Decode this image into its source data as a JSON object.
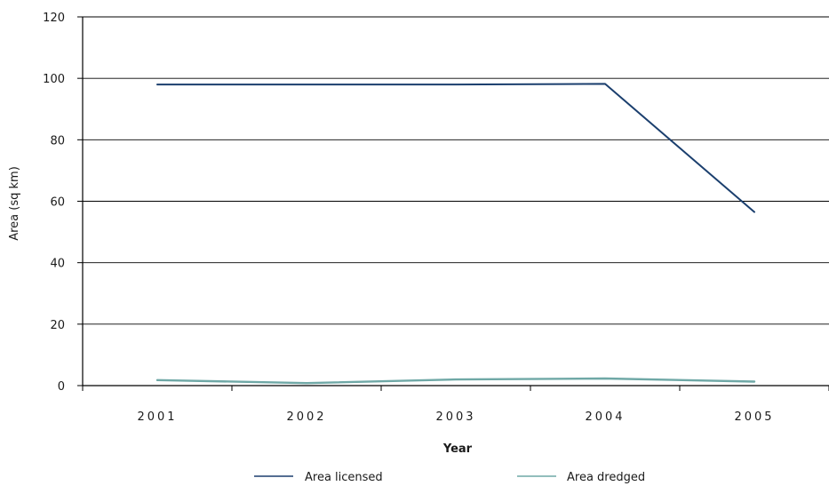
{
  "chart_data": {
    "type": "line",
    "x": [
      "2001",
      "2002",
      "2003",
      "2004",
      "2005"
    ],
    "series": [
      {
        "name": "Area licensed",
        "color": "#1b3f6e",
        "values": [
          98.0,
          98.0,
          98.0,
          98.2,
          56.5
        ]
      },
      {
        "name": "Area dredged",
        "color": "#6fa8a6",
        "values": [
          1.8,
          0.8,
          2.0,
          2.3,
          1.3
        ]
      }
    ],
    "ylim": [
      0,
      120
    ],
    "yticks": [
      0,
      20,
      40,
      60,
      80,
      100,
      120
    ],
    "ytick_labels": [
      "0",
      "20",
      "40",
      "60",
      "80",
      "100",
      "120"
    ],
    "xlabel": "Year",
    "ylabel": "Area (sq km)",
    "grid": "horizontal",
    "legend_position": "bottom"
  }
}
